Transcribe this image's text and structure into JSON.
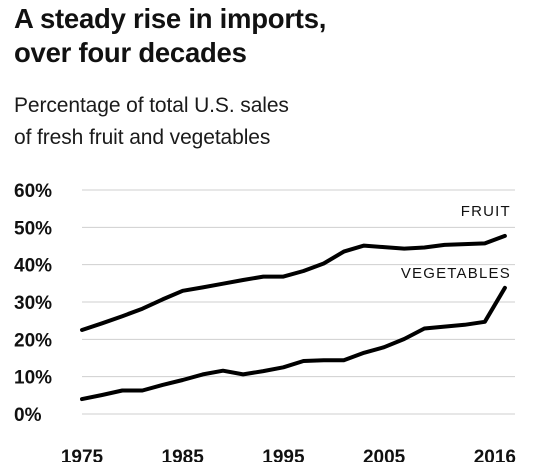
{
  "header": {
    "title_line1": "A steady rise in imports,",
    "title_line2": "over four decades",
    "subtitle_line1": "Percentage of total U.S. sales",
    "subtitle_line2": "of fresh fruit and vegetables"
  },
  "chart_data": {
    "type": "line",
    "title": "A steady rise in imports, over four decades",
    "subtitle": "Percentage of total U.S. sales of fresh fruit and vegetables",
    "xlabel": "",
    "ylabel": "",
    "xlim": [
      1975,
      2018
    ],
    "ylim": [
      0,
      60
    ],
    "y_ticks": [
      0,
      10,
      20,
      30,
      40,
      50,
      60
    ],
    "y_tick_labels": [
      "0%",
      "10%",
      "20%",
      "30%",
      "40%",
      "50%",
      "60%"
    ],
    "x_ticks": [
      1975,
      1985,
      1995,
      2005,
      2016
    ],
    "x_tick_labels": [
      "1975",
      "1985",
      "1995",
      "2005",
      "2016"
    ],
    "grid": true,
    "legend": "direct labels",
    "colors": {
      "line": "#000000",
      "grid": "#cfcfcf",
      "text": "#111111"
    },
    "series": [
      {
        "name": "FRUIT",
        "x": [
          1975,
          1977,
          1979,
          1981,
          1983,
          1985,
          1987,
          1989,
          1991,
          1993,
          1995,
          1997,
          1999,
          2001,
          2003,
          2005,
          2007,
          2009,
          2011,
          2013,
          2015,
          2017
        ],
        "values": [
          22.5,
          24.3,
          26.2,
          28.2,
          30.7,
          33,
          33.9,
          34.9,
          35.9,
          36.8,
          36.8,
          38.3,
          40.3,
          43.5,
          45.1,
          44.7,
          44.3,
          44.6,
          45.3,
          45.5,
          45.7,
          47.7
        ]
      },
      {
        "name": "VEGETABLES",
        "x": [
          1975,
          1977,
          1979,
          1981,
          1983,
          1985,
          1987,
          1989,
          1991,
          1993,
          1995,
          1997,
          1999,
          2001,
          2003,
          2005,
          2007,
          2009,
          2011,
          2013,
          2015,
          2017
        ],
        "values": [
          4,
          5.1,
          6.3,
          6.3,
          7.8,
          9.1,
          10.6,
          11.6,
          10.6,
          11.5,
          12.5,
          14.2,
          14.4,
          14.4,
          16.4,
          17.9,
          20.1,
          22.9,
          23.4,
          23.9,
          24.7,
          33.8
        ]
      }
    ]
  }
}
